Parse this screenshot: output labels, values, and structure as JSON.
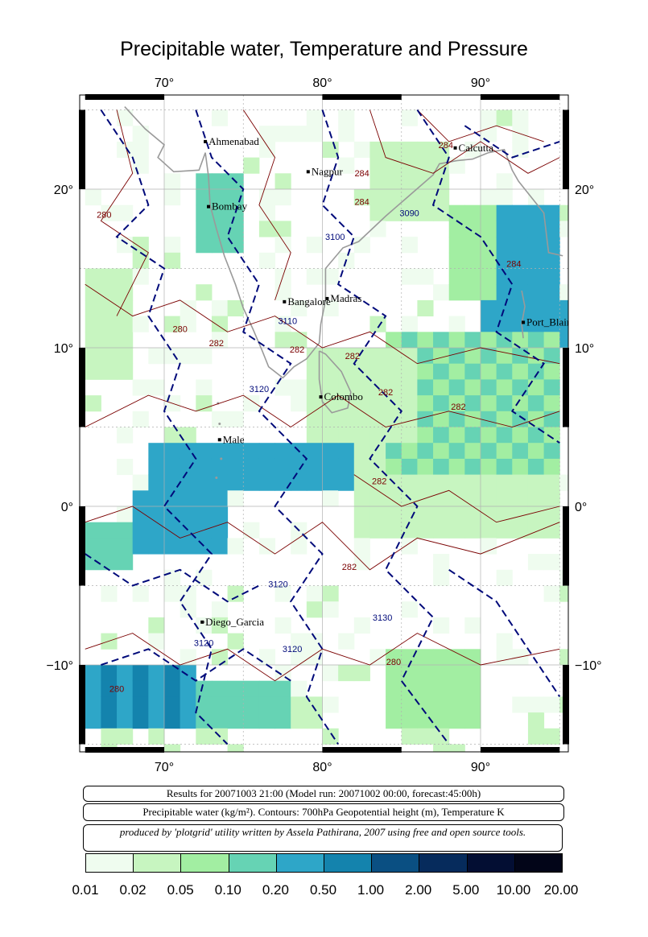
{
  "title": "Precipitable water, Temperature and Pressure",
  "map": {
    "lon_ticks": [
      {
        "value": 70,
        "label": "70°"
      },
      {
        "value": 80,
        "label": "80°"
      },
      {
        "value": 90,
        "label": "90°"
      }
    ],
    "lat_ticks": [
      {
        "value": 20,
        "label": "20°"
      },
      {
        "value": 10,
        "label": "10°"
      },
      {
        "value": 0,
        "label": "0°"
      },
      {
        "value": -10,
        "label": "−10°"
      }
    ],
    "cities": [
      {
        "name": "Ahmenabad",
        "lon": 72.6,
        "lat": 23.0
      },
      {
        "name": "Nagpur",
        "lon": 79.1,
        "lat": 21.1
      },
      {
        "name": "Calcutta",
        "lon": 88.4,
        "lat": 22.6
      },
      {
        "name": "Bombay",
        "lon": 72.8,
        "lat": 18.9
      },
      {
        "name": "Bangalore",
        "lon": 77.6,
        "lat": 12.9
      },
      {
        "name": "Madras",
        "lon": 80.3,
        "lat": 13.1
      },
      {
        "name": "Port_Blair",
        "lon": 92.7,
        "lat": 11.6
      },
      {
        "name": "Colombo",
        "lon": 79.9,
        "lat": 6.9
      },
      {
        "name": "Male",
        "lon": 73.5,
        "lat": 4.2
      },
      {
        "name": "Diego_Garcia",
        "lon": 72.4,
        "lat": -7.3
      }
    ],
    "contour_labels": {
      "geopotential": [
        "3090",
        "3100",
        "3110",
        "3120",
        "3120",
        "3120",
        "3120",
        "3130"
      ],
      "temperature": [
        "284",
        "284",
        "284",
        "284",
        "280",
        "280",
        "282",
        "282",
        "282",
        "282",
        "282",
        "282",
        "282",
        "280",
        "280"
      ]
    },
    "colors": {
      "geopotential_contour": "#000a7a",
      "temperature_contour": "#7a0000",
      "coastline": "#9a9a9a",
      "grid": "#b0b0b0"
    }
  },
  "info": {
    "results": "Results for 20071003 21:00 (Model run: 20071002 00:00, forecast:45:00h)",
    "fields": "Precipitable water (kg/m²).  Contours: 700hPa Geopotential height (m), Temperature K",
    "credit": "produced by 'plotgrid' utility written by Assela Pathirana, 2007 using free and open source tools."
  },
  "legend": {
    "levels": [
      "0.01",
      "0.02",
      "0.05",
      "0.10",
      "0.20",
      "0.50",
      "1.00",
      "2.00",
      "5.00",
      "10.00",
      "20.00"
    ],
    "colors": [
      "#effcef",
      "#c7f5c0",
      "#a2eea2",
      "#66d3b4",
      "#2ea6c8",
      "#1483ad",
      "#0a4f82",
      "#062b5c",
      "#030e33",
      "#020518"
    ]
  }
}
